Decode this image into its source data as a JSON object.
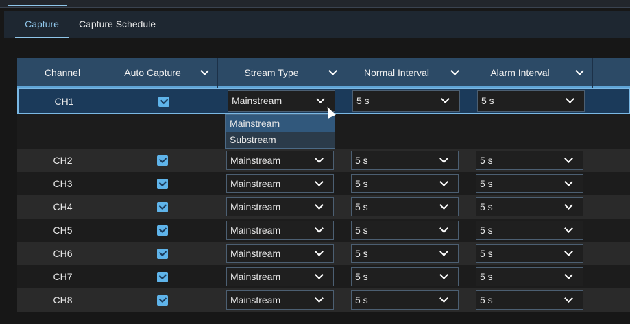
{
  "tabs": [
    {
      "label": "Capture",
      "active": true
    },
    {
      "label": "Capture Schedule",
      "active": false
    }
  ],
  "columns": [
    "Channel",
    "Auto Capture",
    "Stream Type",
    "Normal Interval",
    "Alarm Interval"
  ],
  "rows": [
    {
      "channel": "CH1",
      "auto_capture": true,
      "stream": "Mainstream",
      "normal": "5 s",
      "alarm": "5 s"
    },
    {
      "channel": "CH2",
      "auto_capture": true,
      "stream": "Mainstream",
      "normal": "5 s",
      "alarm": "5 s"
    },
    {
      "channel": "CH3",
      "auto_capture": true,
      "stream": "Mainstream",
      "normal": "5 s",
      "alarm": "5 s"
    },
    {
      "channel": "CH4",
      "auto_capture": true,
      "stream": "Mainstream",
      "normal": "5 s",
      "alarm": "5 s"
    },
    {
      "channel": "CH5",
      "auto_capture": true,
      "stream": "Mainstream",
      "normal": "5 s",
      "alarm": "5 s"
    },
    {
      "channel": "CH6",
      "auto_capture": true,
      "stream": "Mainstream",
      "normal": "5 s",
      "alarm": "5 s"
    },
    {
      "channel": "CH7",
      "auto_capture": true,
      "stream": "Mainstream",
      "normal": "5 s",
      "alarm": "5 s"
    },
    {
      "channel": "CH8",
      "auto_capture": true,
      "stream": "Mainstream",
      "normal": "5 s",
      "alarm": "5 s"
    }
  ],
  "dropdown": {
    "options": [
      "Mainstream",
      "Substream"
    ],
    "highlighted": "Mainstream"
  },
  "colors": {
    "accent": "#8fc6ea",
    "header": "#2c4a66",
    "selected_row": "#1b3a5a",
    "checkbox": "#5fb4ea"
  }
}
